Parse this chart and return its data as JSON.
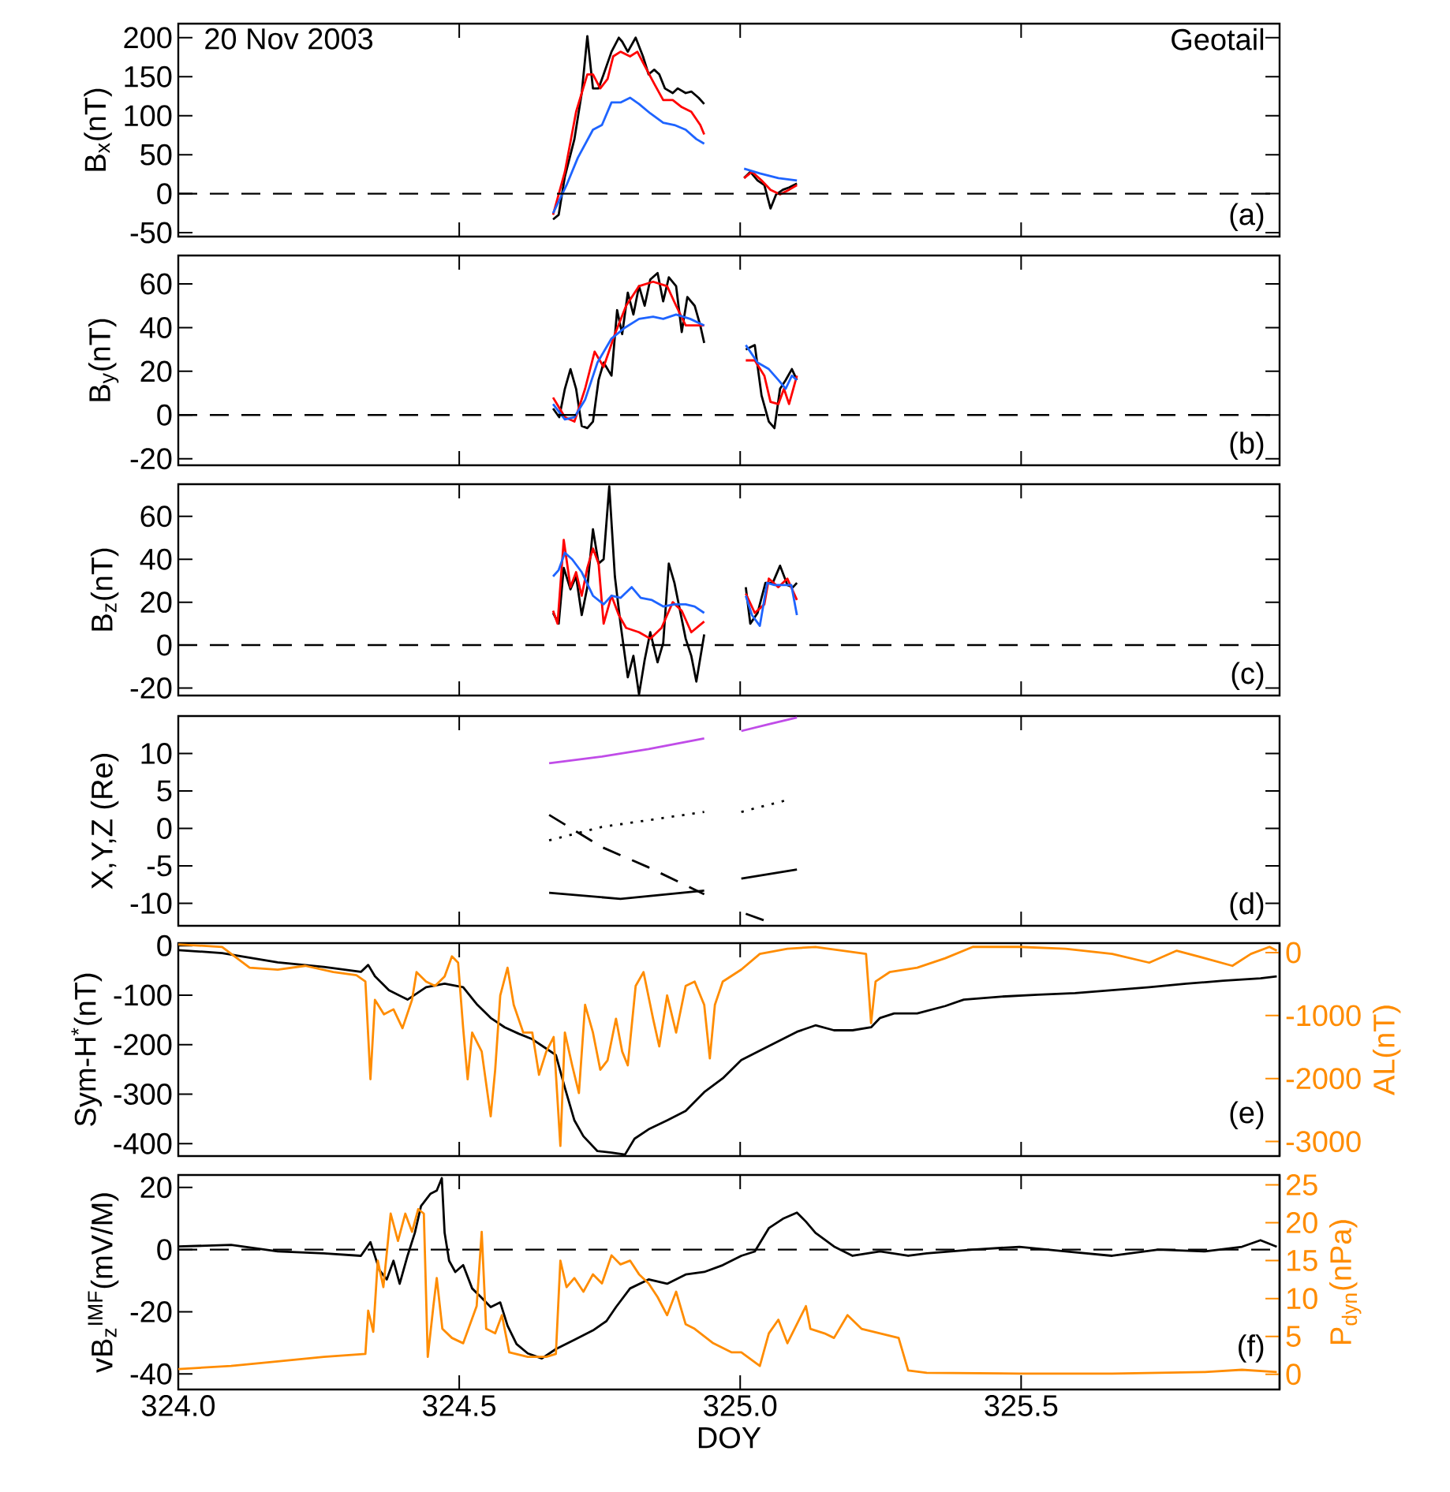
{
  "chart_data": [
    {
      "type": "line",
      "title": "20 Nov 2003",
      "annotations": [
        "Geotail",
        "(a)"
      ],
      "ylabel": "B$_{x}$(nT)",
      "tick_labels": "y",
      "xlim": [
        324.0,
        325.96
      ],
      "xticks": [
        {
          "value": 324.0,
          "label": null
        },
        {
          "value": 324.5,
          "label": null
        },
        {
          "value": 325.0,
          "label": null
        },
        {
          "value": 325.5,
          "label": null
        }
      ],
      "ylim": [
        -55,
        218
      ],
      "yticks": [
        -50,
        0,
        50,
        100,
        150,
        200
      ],
      "ref_lines": [
        {
          "axis": "y",
          "value": 0,
          "line_style": "dashed"
        }
      ],
      "series": [
        {
          "color": "#000000",
          "x": [
            324.667,
            324.677,
            324.688,
            324.705,
            324.718,
            324.728,
            324.738,
            324.748,
            324.757,
            324.771,
            324.784,
            324.79,
            324.8,
            324.814,
            324.827,
            324.837,
            324.847,
            324.856,
            324.866,
            324.88,
            324.889,
            324.903,
            324.913,
            324.926,
            324.936,
            324.97,
            325.007,
            325.018,
            325.031,
            325.043,
            325.054,
            325.064,
            325.076,
            325.087,
            325.101
          ],
          "values": [
            -33,
            -27,
            22,
            70,
            129,
            202,
            135,
            135,
            153,
            182,
            200,
            195,
            182,
            200,
            176,
            153,
            159,
            153,
            135,
            129,
            135,
            129,
            131,
            123,
            115,
            null,
            20,
            28,
            17,
            11,
            -19,
            -1,
            5,
            8,
            13
          ]
        },
        {
          "color": "#ff0000",
          "x": [
            324.667,
            324.688,
            324.708,
            324.728,
            324.738,
            324.751,
            324.764,
            324.774,
            324.787,
            324.804,
            324.817,
            324.83,
            324.847,
            324.863,
            324.88,
            324.896,
            324.913,
            324.929,
            324.936,
            324.97,
            325.007,
            325.021,
            325.038,
            325.054,
            325.071,
            325.087,
            325.101
          ],
          "values": [
            -27,
            28,
            105,
            153,
            153,
            135,
            147,
            176,
            182,
            176,
            182,
            164,
            141,
            120,
            120,
            111,
            105,
            88,
            76,
            null,
            20,
            28,
            17,
            5,
            -1,
            5,
            11
          ]
        },
        {
          "color": "#1e64ff",
          "x": [
            324.667,
            324.691,
            324.711,
            324.738,
            324.754,
            324.771,
            324.787,
            324.804,
            324.82,
            324.84,
            324.863,
            324.883,
            324.903,
            324.922,
            324.936,
            324.97,
            325.007,
            325.035,
            325.068,
            325.101
          ],
          "values": [
            -25,
            11,
            46,
            82,
            88,
            117,
            117,
            123,
            115,
            103,
            91,
            88,
            82,
            70,
            64,
            null,
            32,
            26,
            20,
            17
          ]
        }
      ]
    },
    {
      "type": "line",
      "annotations": [
        "(b)"
      ],
      "ylabel": "B$_{y}$(nT)",
      "tick_labels": "y",
      "xlim": [
        324.0,
        325.96
      ],
      "xticks": [
        {
          "value": 324.0,
          "label": null
        },
        {
          "value": 324.5,
          "label": null
        },
        {
          "value": 325.0,
          "label": null
        },
        {
          "value": 325.5,
          "label": null
        }
      ],
      "ylim": [
        -23,
        73
      ],
      "yticks": [
        -20,
        0,
        20,
        40,
        60
      ],
      "ref_lines": [
        {
          "axis": "y",
          "value": 0,
          "line_style": "dashed"
        }
      ],
      "series": [
        {
          "color": "#000000",
          "x": [
            324.667,
            324.678,
            324.688,
            324.698,
            324.708,
            324.718,
            324.728,
            324.738,
            324.748,
            324.757,
            324.771,
            324.781,
            324.79,
            324.8,
            324.81,
            324.82,
            324.83,
            324.84,
            324.853,
            324.863,
            324.873,
            324.886,
            324.896,
            324.906,
            324.919,
            324.929,
            324.936,
            324.97,
            325.01,
            325.026,
            325.038,
            325.051,
            325.061,
            325.071,
            325.081,
            325.092,
            325.101
          ],
          "values": [
            3,
            -1,
            12,
            21,
            12,
            -5,
            -6,
            -3,
            16,
            24,
            18,
            48,
            37,
            56,
            46,
            59,
            50,
            62,
            65,
            52,
            63,
            59,
            38,
            54,
            50,
            41,
            33,
            null,
            30,
            32,
            9,
            -3,
            -6,
            12,
            16,
            21,
            16
          ]
        },
        {
          "color": "#ff0000",
          "x": [
            324.667,
            324.688,
            324.705,
            324.724,
            324.741,
            324.757,
            324.777,
            324.797,
            324.82,
            324.845,
            324.87,
            324.886,
            324.903,
            324.919,
            324.936,
            324.97,
            325.01,
            325.026,
            325.043,
            325.054,
            325.068,
            325.078,
            325.087,
            325.101
          ],
          "values": [
            8,
            -1,
            -3,
            12,
            29,
            22,
            37,
            50,
            59,
            61,
            59,
            50,
            41,
            41,
            41,
            null,
            25,
            25,
            18,
            6,
            5,
            12,
            5,
            18
          ]
        },
        {
          "color": "#1e64ff",
          "x": [
            324.667,
            324.688,
            324.705,
            324.724,
            324.746,
            324.771,
            324.795,
            324.82,
            324.845,
            324.863,
            324.886,
            324.911,
            324.936,
            324.97,
            325.01,
            325.031,
            325.051,
            325.068,
            325.081,
            325.092,
            325.101
          ],
          "values": [
            5,
            -2,
            -1,
            7,
            24,
            35,
            40,
            44,
            45,
            44,
            46,
            44,
            41,
            null,
            32,
            24,
            21,
            16,
            12,
            18,
            16
          ]
        }
      ]
    },
    {
      "type": "line",
      "annotations": [
        "(c)"
      ],
      "ylabel": "B$_{z}$(nT)",
      "tick_labels": "y",
      "xlim": [
        324.0,
        325.96
      ],
      "xticks": [
        {
          "value": 324.0,
          "label": null
        },
        {
          "value": 324.5,
          "label": null
        },
        {
          "value": 325.0,
          "label": null
        },
        {
          "value": 325.5,
          "label": null
        }
      ],
      "ylim": [
        -23.5,
        75
      ],
      "yticks": [
        -20,
        0,
        20,
        40,
        60
      ],
      "ref_lines": [
        {
          "axis": "y",
          "value": 0,
          "line_style": "dashed"
        }
      ],
      "series": [
        {
          "color": "#000000",
          "x": [
            324.667,
            324.677,
            324.686,
            324.698,
            324.708,
            324.718,
            324.728,
            324.738,
            324.748,
            324.757,
            324.767,
            324.777,
            324.787,
            324.8,
            324.81,
            324.82,
            324.83,
            324.84,
            324.853,
            324.863,
            324.873,
            324.883,
            324.893,
            324.903,
            324.913,
            324.922,
            324.936,
            324.97,
            325.01,
            325.018,
            325.031,
            325.045,
            325.058,
            325.071,
            325.084,
            325.094,
            325.101
          ],
          "values": [
            15,
            10,
            36,
            26,
            32,
            14,
            27,
            54,
            38,
            40,
            74,
            32,
            10,
            -15,
            -5,
            -23,
            -7,
            6,
            -8,
            1,
            38,
            29,
            16,
            3,
            -5,
            -17,
            5,
            null,
            27,
            10,
            15,
            29,
            29,
            37,
            28,
            27,
            29
          ]
        },
        {
          "color": "#ff0000",
          "x": [
            324.667,
            324.675,
            324.686,
            324.698,
            324.708,
            324.718,
            324.728,
            324.738,
            324.748,
            324.757,
            324.771,
            324.784,
            324.797,
            324.82,
            324.84,
            324.86,
            324.88,
            324.896,
            324.913,
            324.936,
            324.97,
            325.01,
            325.026,
            325.043,
            325.051,
            325.068,
            325.084,
            325.101
          ],
          "values": [
            16,
            10,
            49,
            27,
            34,
            23,
            36,
            45,
            38,
            10,
            23,
            14,
            8,
            6,
            3,
            8,
            20,
            16,
            6,
            11,
            null,
            24,
            15,
            19,
            31,
            27,
            31,
            21
          ]
        },
        {
          "color": "#1e64ff",
          "x": [
            324.667,
            324.677,
            324.688,
            324.701,
            324.718,
            324.738,
            324.757,
            324.771,
            324.787,
            324.807,
            324.823,
            324.843,
            324.863,
            324.883,
            324.903,
            324.919,
            324.936,
            324.97,
            325.01,
            325.021,
            325.035,
            325.048,
            325.061,
            325.078,
            325.091,
            325.101
          ],
          "values": [
            32,
            35,
            43,
            40,
            34,
            23,
            19,
            23,
            22,
            27,
            22,
            21,
            18,
            19,
            19,
            18,
            15,
            null,
            23,
            14,
            9,
            29,
            28,
            28,
            28,
            14
          ]
        }
      ]
    },
    {
      "type": "line",
      "annotations": [
        "(d)"
      ],
      "ylabel": "X,Y,Z (Re)",
      "tick_labels": "y",
      "xlim": [
        324.0,
        325.96
      ],
      "xticks": [
        {
          "value": 324.0,
          "label": null
        },
        {
          "value": 324.5,
          "label": null
        },
        {
          "value": 325.0,
          "label": null
        },
        {
          "value": 325.5,
          "label": null
        }
      ],
      "ylim": [
        -13,
        15
      ],
      "yticks": [
        -10,
        -5,
        0,
        5,
        10
      ],
      "series": [
        {
          "color": "#c04ce8",
          "line_style": "solid",
          "x": [
            324.66,
            324.754,
            324.837,
            324.936,
            324.97,
            325.002,
            325.051,
            325.101
          ],
          "values": [
            8.7,
            9.6,
            10.6,
            12.0,
            null,
            13.0,
            13.9,
            14.8
          ]
        },
        {
          "color": "#000000",
          "line_style": "dotted",
          "x": [
            324.66,
            324.754,
            324.837,
            324.936,
            324.97,
            325.002,
            325.084
          ],
          "values": [
            -1.6,
            0.2,
            1.1,
            2.2,
            null,
            2.2,
            3.8
          ]
        },
        {
          "color": "#000000",
          "line_style": "dashed",
          "x": [
            324.66,
            324.754,
            324.837,
            324.936,
            324.97,
            325.01,
            325.051
          ],
          "values": [
            1.8,
            -2.5,
            -5.2,
            -8.8,
            null,
            -11.4,
            -12.5
          ]
        },
        {
          "color": "#000000",
          "line_style": "solid",
          "x": [
            324.66,
            324.787,
            324.936,
            324.97,
            325.002,
            325.101
          ],
          "values": [
            -8.6,
            -9.4,
            -8.3,
            null,
            -6.7,
            -5.5
          ]
        }
      ]
    },
    {
      "type": "line",
      "annotations": [
        "(e)"
      ],
      "ylabel": "Sym-H$^{*}$(nT)",
      "y2label": "AL(nT)",
      "tick_labels": "y",
      "xlim": [
        324.0,
        325.96
      ],
      "xticks": [
        {
          "value": 324.0,
          "label": null
        },
        {
          "value": 324.5,
          "label": null
        },
        {
          "value": 325.0,
          "label": null
        },
        {
          "value": 325.5,
          "label": null
        }
      ],
      "ylim": [
        -425,
        5
      ],
      "yticks": [
        -400,
        -300,
        -200,
        -100,
        0
      ],
      "y2lim": [
        -3230,
        150
      ],
      "y2ticks": [
        -3000,
        -2000,
        -1000,
        0
      ],
      "series": [
        {
          "color": "#000000",
          "x": [
            324.0,
            324.078,
            324.177,
            324.259,
            324.325,
            324.338,
            324.35,
            324.375,
            324.408,
            324.441,
            324.474,
            324.507,
            324.531,
            324.556,
            324.581,
            324.606,
            324.63,
            324.655,
            324.672,
            324.688,
            324.705,
            324.721,
            324.746,
            324.771,
            324.795,
            324.812,
            324.837,
            324.87,
            324.903,
            324.936,
            324.969,
            325.002,
            325.051,
            325.101,
            325.134,
            325.167,
            325.2,
            325.233,
            325.249,
            325.274,
            325.315,
            325.365,
            325.398,
            325.464,
            325.53,
            325.596,
            325.662,
            325.728,
            325.794,
            325.86,
            325.926,
            325.955
          ],
          "values": [
            -9,
            -15,
            -34,
            -43,
            -53,
            -39,
            -62,
            -90,
            -109,
            -84,
            -77,
            -84,
            -118,
            -146,
            -165,
            -178,
            -189,
            -208,
            -221,
            -287,
            -353,
            -385,
            -415,
            -418,
            -422,
            -390,
            -371,
            -353,
            -334,
            -296,
            -268,
            -231,
            -203,
            -174,
            -161,
            -171,
            -171,
            -165,
            -146,
            -137,
            -137,
            -122,
            -109,
            -103,
            -99,
            -96,
            -90,
            -84,
            -77,
            -71,
            -66,
            -62
          ]
        },
        {
          "color": "#ff8c00",
          "axis": "y2",
          "x": [
            324.0,
            324.078,
            324.127,
            324.177,
            324.226,
            324.276,
            324.317,
            324.333,
            324.342,
            324.35,
            324.366,
            324.383,
            324.399,
            324.416,
            324.424,
            324.441,
            324.457,
            324.474,
            324.487,
            324.498,
            324.507,
            324.515,
            324.523,
            324.54,
            324.556,
            324.564,
            324.573,
            324.586,
            324.597,
            324.614,
            324.63,
            324.642,
            324.655,
            324.668,
            324.68,
            324.688,
            324.701,
            324.713,
            324.724,
            324.738,
            324.751,
            324.764,
            324.779,
            324.79,
            324.8,
            324.814,
            324.828,
            324.845,
            324.856,
            324.87,
            324.886,
            324.903,
            324.919,
            324.936,
            324.946,
            324.955,
            324.969,
            325.002,
            325.035,
            325.084,
            325.134,
            325.183,
            325.224,
            325.233,
            325.241,
            325.266,
            325.315,
            325.365,
            325.414,
            325.497,
            325.579,
            325.662,
            325.728,
            325.777,
            325.827,
            325.876,
            325.909,
            325.942,
            325.955
          ],
          "values": [
            130,
            90,
            -240,
            -270,
            -210,
            -310,
            -360,
            -460,
            -2010,
            -750,
            -980,
            -900,
            -1200,
            -750,
            -310,
            -460,
            -530,
            -380,
            -60,
            -160,
            -1200,
            -2010,
            -1270,
            -1570,
            -2600,
            -1860,
            -680,
            -240,
            -830,
            -1270,
            -1270,
            -1940,
            -1570,
            -1340,
            -3070,
            -1270,
            -1790,
            -2230,
            -830,
            -1270,
            -1860,
            -1710,
            -1050,
            -1570,
            -1790,
            -530,
            -310,
            -1050,
            -1490,
            -680,
            -1270,
            -530,
            -460,
            -830,
            -1680,
            -830,
            -460,
            -270,
            -20,
            60,
            90,
            30,
            -20,
            -1120,
            -460,
            -310,
            -240,
            -90,
            90,
            90,
            60,
            -20,
            -160,
            30,
            -90,
            -210,
            -20,
            90,
            30
          ]
        }
      ]
    },
    {
      "type": "line",
      "annotations": [
        "(f)"
      ],
      "xlabel": "DOY",
      "ylabel": "vB$_{z}$$^{IMF}$(mV/M)",
      "y2label": "P$_{dyn}$(nPa)",
      "xlim": [
        324.0,
        325.96
      ],
      "xticks": [
        {
          "value": 324.0,
          "label": "324.0"
        },
        {
          "value": 324.5,
          "label": "324.5"
        },
        {
          "value": 325.0,
          "label": "325.0"
        },
        {
          "value": 325.5,
          "label": "325.5"
        }
      ],
      "ylim": [
        -45,
        24
      ],
      "yticks": [
        -40,
        -20,
        0,
        20
      ],
      "y2lim": [
        -2,
        26.3
      ],
      "y2ticks": [
        0,
        5,
        10,
        15,
        20,
        25
      ],
      "ref_lines": [
        {
          "axis": "y",
          "value": 0,
          "line_style": "dashed"
        }
      ],
      "series": [
        {
          "color": "#000000",
          "x": [
            324.0,
            324.094,
            324.177,
            324.259,
            324.325,
            324.342,
            324.358,
            324.371,
            324.383,
            324.394,
            324.408,
            324.421,
            324.432,
            324.449,
            324.46,
            324.469,
            324.474,
            324.482,
            324.493,
            324.507,
            324.523,
            324.54,
            324.556,
            324.573,
            324.586,
            324.602,
            324.622,
            324.647,
            324.672,
            324.705,
            324.738,
            324.762,
            324.779,
            324.804,
            324.837,
            324.87,
            324.903,
            324.936,
            324.969,
            325.002,
            325.026,
            325.051,
            325.076,
            325.101,
            325.117,
            325.134,
            325.167,
            325.2,
            325.249,
            325.299,
            325.332,
            325.414,
            325.497,
            325.579,
            325.662,
            325.744,
            325.827,
            325.893,
            325.926,
            325.955
          ],
          "values": [
            1,
            1.5,
            -0.6,
            -1.2,
            -2,
            2.4,
            -6.6,
            -9.6,
            -3.6,
            -11,
            -2,
            5.4,
            14,
            18,
            19,
            23,
            5.4,
            -3.6,
            -7.2,
            -5,
            -12.5,
            -15.5,
            -18.5,
            -17,
            -24.5,
            -30.4,
            -33.4,
            -35,
            -32,
            -29,
            -26,
            -23,
            -18.5,
            -12.5,
            -9.6,
            -11,
            -8,
            -7.2,
            -5,
            -2,
            -0.6,
            6.9,
            9.9,
            11.9,
            9,
            5.4,
            1,
            -2,
            -0.6,
            -2,
            -1.2,
            0,
            0.9,
            -0.6,
            -2,
            0,
            -0.6,
            0.9,
            3,
            0.9
          ]
        },
        {
          "color": "#ff8c00",
          "axis": "y2",
          "x": [
            324.0,
            324.094,
            324.177,
            324.259,
            324.333,
            324.338,
            324.347,
            324.355,
            324.365,
            324.378,
            324.391,
            324.404,
            324.416,
            324.427,
            324.437,
            324.444,
            324.454,
            324.46,
            324.47,
            324.487,
            324.507,
            324.531,
            324.54,
            324.548,
            324.564,
            324.576,
            324.589,
            324.622,
            324.655,
            324.672,
            324.68,
            324.691,
            324.705,
            324.721,
            324.738,
            324.754,
            324.771,
            324.787,
            324.804,
            324.82,
            324.837,
            324.853,
            324.87,
            324.886,
            324.903,
            324.919,
            324.952,
            324.985,
            325.002,
            325.035,
            325.051,
            325.068,
            325.084,
            325.117,
            325.125,
            325.15,
            325.167,
            325.191,
            325.216,
            325.249,
            325.282,
            325.299,
            325.332,
            325.497,
            325.662,
            325.827,
            325.893,
            325.955
          ],
          "values": [
            0.7,
            1.1,
            1.7,
            2.3,
            2.7,
            8.4,
            5.6,
            15,
            11.5,
            21.2,
            17.6,
            21.2,
            18.8,
            21.8,
            21.2,
            2.3,
            9,
            12.7,
            6,
            4.8,
            4.1,
            9,
            18.8,
            6,
            5.4,
            7.8,
            2.9,
            2.3,
            2.3,
            2.7,
            15,
            11.5,
            12.7,
            10.9,
            13.2,
            12,
            15.7,
            14.5,
            15,
            13.2,
            12,
            10.2,
            7.8,
            10.9,
            6.6,
            6,
            4.1,
            2.9,
            2.9,
            1.1,
            5.4,
            7.2,
            4.1,
            9,
            6,
            5.4,
            4.8,
            7.8,
            6,
            5.4,
            4.8,
            0.5,
            0.2,
            0.1,
            0.1,
            0.3,
            0.6,
            0.3
          ]
        }
      ]
    }
  ]
}
